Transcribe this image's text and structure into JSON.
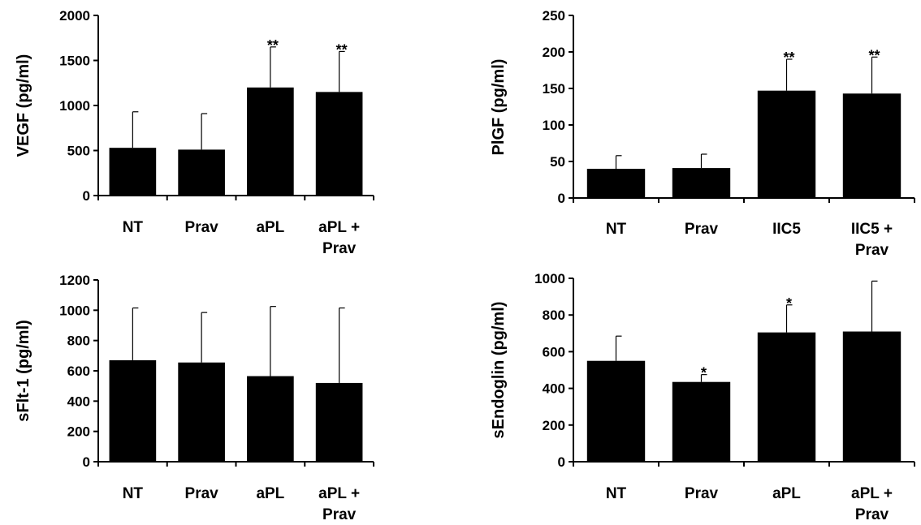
{
  "chart_data": [
    {
      "type": "bar",
      "ylabel": "VEGF (pg/ml)",
      "ylim": [
        0,
        2000
      ],
      "yticks": [
        0,
        500,
        1000,
        1500,
        2000
      ],
      "categories": [
        [
          "NT"
        ],
        [
          "Prav"
        ],
        [
          "aPL"
        ],
        [
          "aPL +",
          "Prav"
        ]
      ],
      "values": [
        530,
        510,
        1200,
        1150
      ],
      "error": [
        400,
        400,
        450,
        450
      ],
      "annotations": [
        "",
        "",
        "**",
        "**"
      ],
      "bar_color": "#000000"
    },
    {
      "type": "bar",
      "ylabel": "PlGF (pg/ml)",
      "ylim": [
        0,
        250
      ],
      "yticks": [
        0,
        50,
        100,
        150,
        200,
        250
      ],
      "categories": [
        [
          "NT"
        ],
        [
          "Prav"
        ],
        [
          "IIC5"
        ],
        [
          "IIC5 +",
          "Prav"
        ]
      ],
      "values": [
        40,
        41,
        147,
        143
      ],
      "error": [
        18,
        19,
        43,
        50
      ],
      "annotations": [
        "",
        "",
        "**",
        "**"
      ],
      "bar_color": "#000000"
    },
    {
      "type": "bar",
      "ylabel": "sFlt-1 (pg/ml)",
      "ylim": [
        0,
        1200
      ],
      "yticks": [
        0,
        200,
        400,
        600,
        800,
        1000,
        1200
      ],
      "categories": [
        [
          "NT"
        ],
        [
          "Prav"
        ],
        [
          "aPL"
        ],
        [
          "aPL +",
          "Prav"
        ]
      ],
      "values": [
        670,
        655,
        565,
        520
      ],
      "error": [
        345,
        330,
        460,
        495
      ],
      "annotations": [
        "",
        "",
        "",
        ""
      ],
      "bar_color": "#000000"
    },
    {
      "type": "bar",
      "ylabel": "sEndoglin (pg/ml)",
      "ylim": [
        0,
        1000
      ],
      "yticks": [
        0,
        200,
        400,
        600,
        800,
        1000
      ],
      "categories": [
        [
          "NT"
        ],
        [
          "Prav"
        ],
        [
          "aPL"
        ],
        [
          "aPL +",
          "Prav"
        ]
      ],
      "values": [
        550,
        435,
        705,
        710
      ],
      "error": [
        135,
        40,
        150,
        275
      ],
      "annotations": [
        "",
        "*",
        "*",
        ""
      ],
      "bar_color": "#000000"
    }
  ]
}
